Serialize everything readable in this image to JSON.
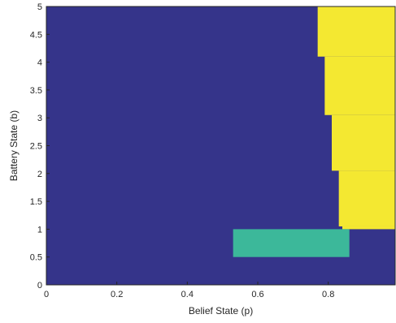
{
  "chart_data": {
    "type": "heatmap",
    "title": "",
    "xlabel": "Belief State (p)",
    "ylabel": "Battery State (b)",
    "xlim": [
      0,
      0.99
    ],
    "ylim": [
      0,
      5
    ],
    "x_ticks": [
      0,
      0.2,
      0.4,
      0.6,
      0.8
    ],
    "x_tick_labels": [
      "0",
      "0.2",
      "0.4",
      "0.6",
      "0.8"
    ],
    "y_ticks": [
      0,
      0.5,
      1,
      1.5,
      2,
      2.5,
      3,
      3.5,
      4,
      4.5,
      5
    ],
    "y_tick_labels": [
      "0",
      "0.5",
      "1",
      "1.5",
      "2",
      "2.5",
      "3",
      "3.5",
      "4",
      "4.5",
      "5"
    ],
    "grid": false,
    "legend": "none",
    "colors": {
      "background_region": "#35348a",
      "yellow_region": "#f4e831",
      "teal_region": "#3cb89a",
      "axis": "#262626"
    },
    "regions": [
      {
        "color": "#35348a",
        "x": [
          0,
          0.99
        ],
        "y": [
          0,
          5
        ]
      },
      {
        "color": "#f4e831",
        "x": [
          0.77,
          0.99
        ],
        "y": [
          4.1,
          5
        ]
      },
      {
        "color": "#f4e831",
        "x": [
          0.79,
          0.99
        ],
        "y": [
          3.05,
          4.1
        ]
      },
      {
        "color": "#f4e831",
        "x": [
          0.81,
          0.99
        ],
        "y": [
          2.05,
          3.05
        ]
      },
      {
        "color": "#f4e831",
        "x": [
          0.83,
          0.99
        ],
        "y": [
          1.05,
          2.05
        ]
      },
      {
        "color": "#f4e831",
        "x": [
          0.84,
          0.99
        ],
        "y": [
          1.0,
          1.05
        ]
      },
      {
        "color": "#3cb89a",
        "x": [
          0.53,
          0.86
        ],
        "y": [
          0.5,
          1.0
        ]
      }
    ]
  }
}
